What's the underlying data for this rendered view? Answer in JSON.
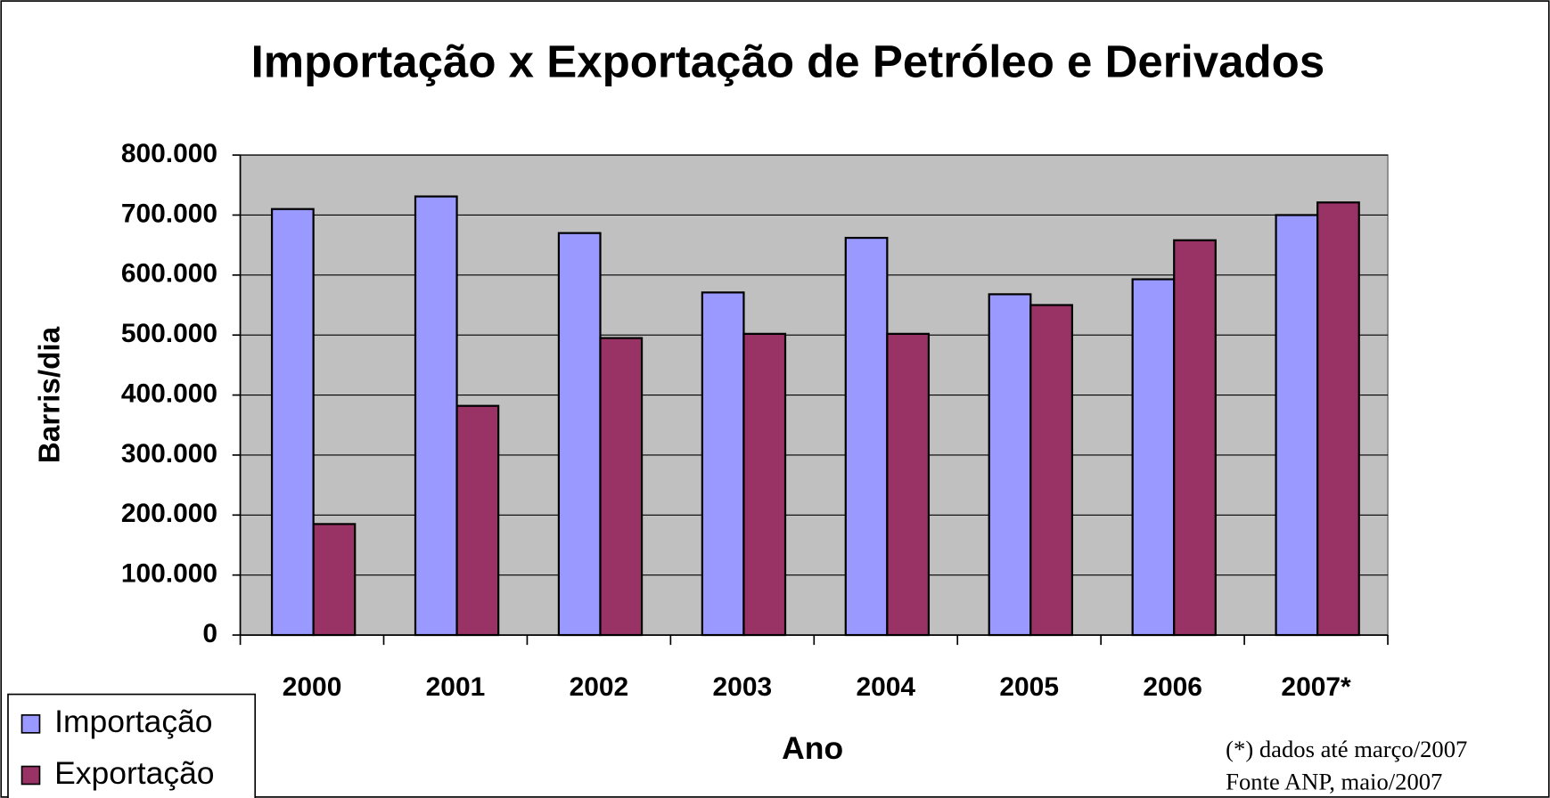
{
  "chart_data": {
    "type": "bar",
    "title": "Importação x Exportação de Petróleo e Derivados",
    "x_label": "Ano",
    "y_label": "Barris/dia",
    "categories": [
      "2000",
      "2001",
      "2002",
      "2003",
      "2004",
      "2005",
      "2006",
      "2007*"
    ],
    "series": [
      {
        "name": "Importação",
        "color": "#9999ff",
        "values": [
          710000,
          731000,
          670000,
          571000,
          662000,
          568000,
          593000,
          700000
        ]
      },
      {
        "name": "Exportação",
        "color": "#993366",
        "values": [
          185000,
          382000,
          495000,
          502000,
          502000,
          550000,
          658000,
          721000
        ]
      }
    ],
    "ylim": [
      0,
      800000
    ],
    "yticks": [
      0,
      {
        "value": 100000,
        "label": "100.000"
      },
      {
        "value": 200000,
        "label": "200.000"
      },
      {
        "value": 300000,
        "label": "300.000"
      },
      {
        "value": 400000,
        "label": "400.000"
      },
      {
        "value": 500000,
        "label": "500.000"
      },
      {
        "value": 600000,
        "label": "600.000"
      },
      {
        "value": 700000,
        "label": "700.000"
      },
      {
        "value": 800000,
        "label": "800.000"
      }
    ],
    "grid": true,
    "plot_background": "#c0c0c0",
    "legend": "lower left",
    "notes": [
      "(*) dados até março/2007",
      "Fonte ANP, maio/2007"
    ]
  }
}
